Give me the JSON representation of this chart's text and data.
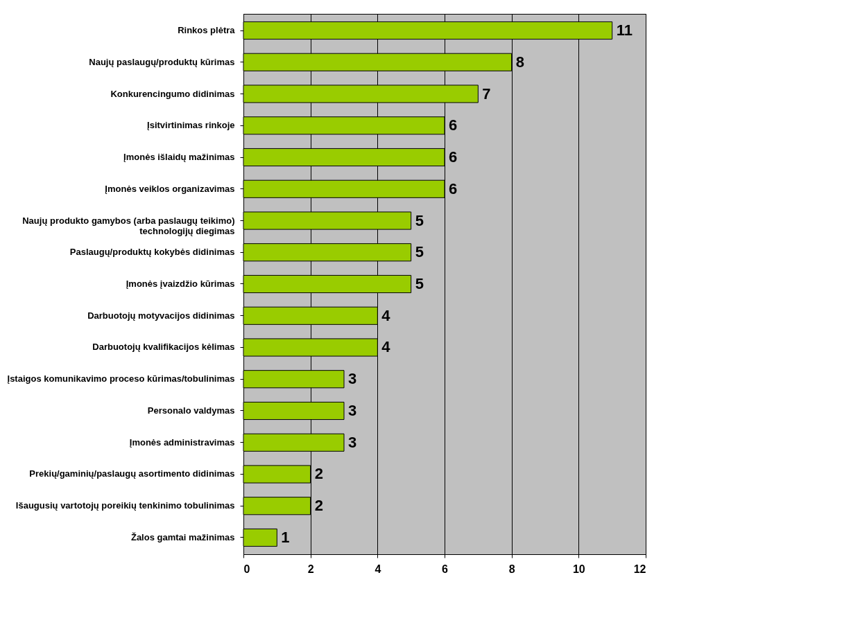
{
  "chart_data": {
    "type": "bar",
    "orientation": "horizontal",
    "categories": [
      "Rinkos plėtra",
      "Naujų paslaugų/produktų kūrimas",
      "Konkurencingumo didinimas",
      "Įsitvirtinimas rinkoje",
      "Įmonės išlaidų mažinimas",
      "Įmonės veiklos organizavimas",
      "Naujų produkto gamybos (arba paslaugų teikimo)\ntechnologijų diegimas",
      "Paslaugų/produktų kokybės didinimas",
      "Įmonės įvaizdžio kūrimas",
      "Darbuotojų motyvacijos didinimas",
      "Darbuotojų kvalifikacijos kėlimas",
      "Įstaigos komunikavimo proceso kūrimas/tobulinimas",
      "Personalo valdymas",
      "Įmonės administravimas",
      "Prekių/gaminių/paslaugų asortimento didinimas",
      "Išaugusių vartotojų poreikių tenkinimo tobulinimas",
      "Žalos gamtai mažinimas"
    ],
    "values": [
      11,
      8,
      7,
      6,
      6,
      6,
      5,
      5,
      5,
      4,
      4,
      3,
      3,
      3,
      2,
      2,
      1
    ],
    "color": "#99cc00",
    "xlim": [
      0,
      12
    ],
    "xticks": [
      0,
      2,
      4,
      6,
      8,
      10,
      12
    ],
    "grid": "x",
    "data_labels": true
  }
}
